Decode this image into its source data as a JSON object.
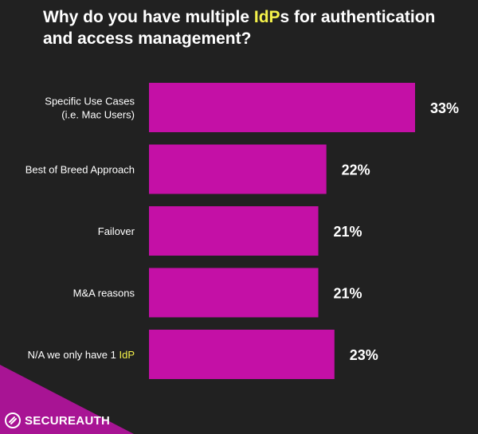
{
  "title": {
    "part1": "Why do you have multiple ",
    "highlight": "IdP",
    "part2": "s for authentication and access management?"
  },
  "colors": {
    "background": "#212121",
    "bar": "#c410a6",
    "highlight": "#f5f24a",
    "text": "#ffffff"
  },
  "chart_data": {
    "type": "bar",
    "orientation": "horizontal",
    "categories": [
      "Specific Use Cases (i.e. Mac Users)",
      "Best of Breed Approach",
      "Failover",
      "M&A reasons",
      "N/A we only have 1 IdP"
    ],
    "category_lines": [
      [
        {
          "t": "Specific Use Cases"
        },
        {
          "t": "(i.e. Mac Users)"
        }
      ],
      [
        {
          "t": "Best of Breed Approach"
        }
      ],
      [
        {
          "t": "Failover"
        }
      ],
      [
        {
          "t": "M&A reasons"
        }
      ],
      [
        {
          "t": "N/A we only have 1 ",
          "hl": "IdP"
        }
      ]
    ],
    "values": [
      33,
      22,
      21,
      21,
      23
    ],
    "value_labels": [
      "33%",
      "22%",
      "21%",
      "21%",
      "23%"
    ],
    "title": "Why do you have multiple IdPs for authentication and access management?",
    "xlabel": "",
    "ylabel": "",
    "grid": false,
    "legend": "none"
  },
  "brand": {
    "logo_text": "SECUREAUTH",
    "logo_icon": "secureauth-logo-icon"
  }
}
